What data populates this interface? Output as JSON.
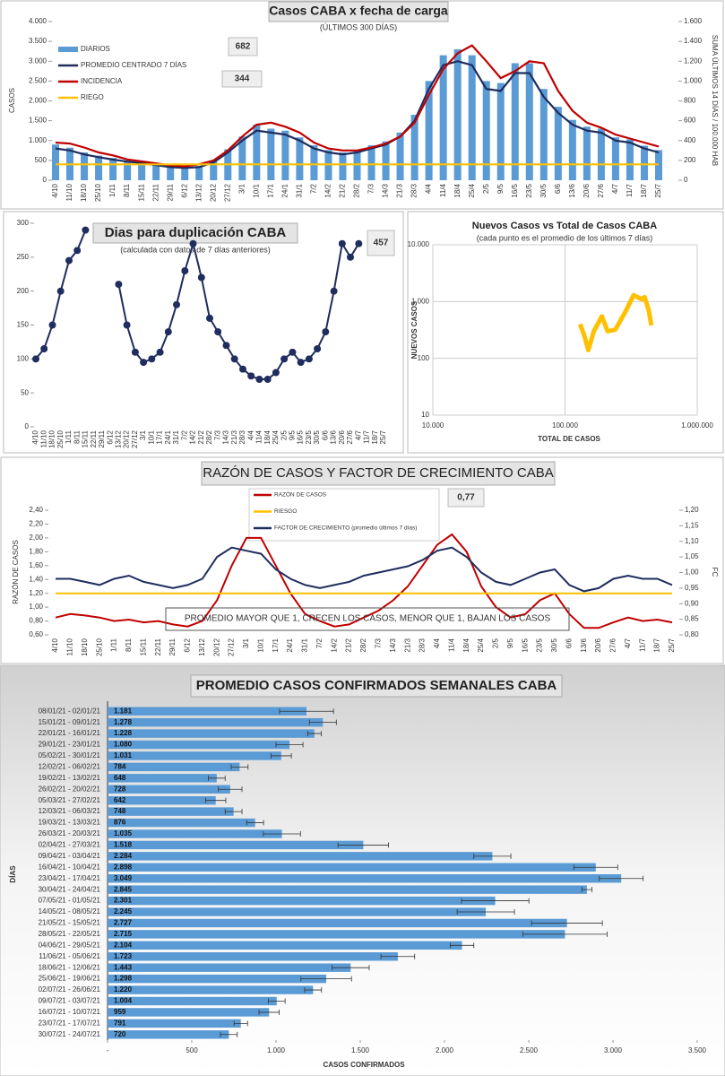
{
  "chart_data": [
    {
      "type": "bar_line",
      "title": "Casos CABA x fecha de carga",
      "subtitle": "(ÚLTIMOS 300 DÍAS)",
      "y_label": "CASOS",
      "y2_label": "SUMA ÚLTIMOS 14 DÍAS / 100.000 HAB",
      "annotations": [
        "682",
        "344"
      ],
      "legend": "upper left",
      "grid": false,
      "categories": [
        "4/10",
        "11/10",
        "18/10",
        "25/10",
        "1/11",
        "8/11",
        "15/11",
        "22/11",
        "29/11",
        "6/12",
        "13/12",
        "20/12",
        "27/12",
        "3/1",
        "10/1",
        "17/1",
        "24/1",
        "31/1",
        "7/2",
        "14/2",
        "21/2",
        "28/2",
        "7/3",
        "14/3",
        "21/3",
        "28/3",
        "4/4",
        "11/4",
        "18/4",
        "25/4",
        "2/5",
        "9/5",
        "16/5",
        "23/5",
        "30/5",
        "6/6",
        "13/6",
        "20/6",
        "27/6",
        "4/7",
        "11/7",
        "18/7",
        "25/7"
      ],
      "ylim": [
        0,
        4000
      ],
      "yticks": [
        0,
        500,
        {
          "value": 1000,
          "label": "1.000"
        },
        {
          "value": 1500,
          "label": "1.500"
        },
        {
          "value": 2000,
          "label": "2.000"
        },
        {
          "value": 2500,
          "label": "2.500"
        },
        {
          "value": 3000,
          "label": "3.000"
        },
        {
          "value": 3500,
          "label": "3.500"
        },
        {
          "value": 4000,
          "label": "4.000"
        }
      ],
      "y2lim": [
        0,
        1600
      ],
      "y2ticks": [
        0,
        200,
        400,
        600,
        800,
        {
          "value": 1000,
          "label": "1.000"
        },
        {
          "value": 1200,
          "label": "1.200"
        },
        {
          "value": 1400,
          "label": "1.400"
        },
        {
          "value": 1600,
          "label": "1.600"
        }
      ],
      "series": [
        {
          "name": "DIARIOS",
          "color": "#5b9bd5",
          "kind": "bar",
          "values": [
            900,
            820,
            700,
            620,
            560,
            500,
            460,
            410,
            360,
            330,
            360,
            500,
            780,
            1100,
            1400,
            1300,
            1250,
            1080,
            880,
            760,
            700,
            760,
            880,
            980,
            1200,
            1650,
            2500,
            3150,
            3300,
            3150,
            2500,
            2450,
            2950,
            2950,
            2300,
            1850,
            1520,
            1350,
            1300,
            1080,
            1030,
            870,
            760
          ]
        },
        {
          "name": "PROMEDIO CENTRADO 7 DÍAS",
          "color": "#1f2d5f",
          "kind": "line",
          "values": [
            800,
            750,
            650,
            580,
            520,
            470,
            430,
            380,
            330,
            310,
            330,
            450,
            700,
            1000,
            1250,
            1200,
            1150,
            1000,
            800,
            700,
            650,
            700,
            800,
            900,
            1100,
            1500,
            2300,
            2900,
            3000,
            2900,
            2300,
            2250,
            2700,
            2700,
            2100,
            1700,
            1400,
            1250,
            1200,
            1000,
            950,
            800,
            700
          ]
        },
        {
          "name": "INCIDENCIA",
          "color": "#c00000",
          "kind": "line",
          "axis": "y2",
          "values": [
            380,
            370,
            330,
            280,
            250,
            210,
            190,
            170,
            150,
            140,
            160,
            200,
            300,
            440,
            560,
            580,
            540,
            480,
            380,
            320,
            300,
            300,
            330,
            370,
            440,
            580,
            860,
            1120,
            1280,
            1360,
            1200,
            1030,
            1100,
            1200,
            1180,
            900,
            700,
            580,
            530,
            460,
            420,
            380,
            340
          ]
        },
        {
          "name": "RIEGO",
          "color": "#ffc000",
          "kind": "line",
          "values": [
            400,
            400,
            400,
            400,
            400,
            400,
            400,
            400,
            400,
            400,
            400,
            400,
            400,
            400,
            400,
            400,
            400,
            400,
            400,
            400,
            400,
            400,
            400,
            400,
            400,
            400,
            400,
            400,
            400,
            400,
            400,
            400,
            400,
            400,
            400,
            400,
            400,
            400,
            400,
            400,
            400,
            400,
            400
          ]
        }
      ]
    },
    {
      "type": "line",
      "title": "Dias para duplicación CABA",
      "subtitle": "(calculada con datos de 7 días anteriores)",
      "annotations": [
        "457"
      ],
      "color": "#1f2d5f",
      "grid": false,
      "categories": [
        "4/10",
        "11/10",
        "18/10",
        "25/10",
        "1/11",
        "8/11",
        "15/11",
        "22/11",
        "29/11",
        "6/12",
        "13/12",
        "20/12",
        "27/12",
        "3/1",
        "10/1",
        "17/1",
        "24/1",
        "31/1",
        "7/2",
        "14/2",
        "21/2",
        "28/2",
        "7/3",
        "14/3",
        "21/3",
        "28/3",
        "4/4",
        "11/4",
        "18/4",
        "25/4",
        "2/5",
        "9/5",
        "16/5",
        "23/5",
        "30/5",
        "6/6",
        "13/6",
        "20/6",
        "27/6",
        "4/7",
        "11/7",
        "18/7",
        "25/7"
      ],
      "values": [
        100,
        115,
        150,
        200,
        245,
        260,
        290,
        null,
        null,
        null,
        210,
        150,
        110,
        95,
        100,
        110,
        140,
        180,
        230,
        270,
        220,
        160,
        140,
        120,
        100,
        85,
        75,
        70,
        70,
        80,
        100,
        110,
        95,
        100,
        115,
        140,
        200,
        270,
        250,
        270,
        null,
        null,
        null
      ],
      "ylim": [
        0,
        300
      ],
      "yticks": [
        0,
        50,
        100,
        150,
        200,
        250,
        300
      ]
    },
    {
      "type": "scatter",
      "title": "Nuevos Casos vs Total de Casos CABA",
      "subtitle": "(cada punto es el promedio de los últimos 7 días)",
      "x_label": "TOTAL DE CASOS",
      "y_label": "NUEVOS CASOS",
      "color": "#ffc000",
      "xscale": "log",
      "yscale": "log",
      "grid": true,
      "x": [
        130000,
        140000,
        150000,
        165000,
        190000,
        210000,
        240000,
        290000,
        330000,
        380000,
        400000,
        430000,
        450000
      ],
      "values": [
        400,
        250,
        140,
        300,
        550,
        300,
        320,
        700,
        1300,
        1100,
        1200,
        700,
        380
      ],
      "xlim": [
        10000,
        1000000
      ],
      "xticks": [
        {
          "value": 10000,
          "label": "10.000"
        },
        {
          "value": 100000,
          "label": "100.000"
        },
        {
          "value": 1000000,
          "label": "1.000.000"
        }
      ],
      "ylim": [
        10,
        10000
      ],
      "yticks": [
        10,
        100,
        {
          "value": 1000,
          "label": "1.000"
        },
        {
          "value": 10000,
          "label": "10.000"
        }
      ]
    },
    {
      "type": "line",
      "title": "RAZÓN DE CASOS Y FACTOR DE CRECIMIENTO CABA",
      "y_label": "RAZÓN DE CASOS",
      "y2_label": "FC",
      "annotations": [
        "0,77",
        "PROMEDIO MAYOR QUE 1, CRECEN LOS CASOS, MENOR QUE 1, BAJAN LOS CASOS"
      ],
      "legend": "upper center",
      "grid": false,
      "categories": [
        "4/10",
        "11/10",
        "18/10",
        "25/10",
        "1/11",
        "8/11",
        "15/11",
        "22/11",
        "29/11",
        "6/12",
        "13/12",
        "20/12",
        "27/12",
        "3/1",
        "10/1",
        "17/1",
        "24/1",
        "31/1",
        "7/2",
        "14/2",
        "21/2",
        "28/2",
        "7/3",
        "14/3",
        "21/3",
        "28/3",
        "4/4",
        "11/4",
        "18/4",
        "25/4",
        "2/5",
        "9/5",
        "16/5",
        "23/5",
        "30/5",
        "6/6",
        "13/6",
        "20/6",
        "27/6",
        "4/7",
        "11/7",
        "18/7",
        "25/7"
      ],
      "ylim": [
        0.6,
        2.4
      ],
      "yticks": [
        {
          "value": 0.6,
          "label": "0,60"
        },
        {
          "value": 0.8,
          "label": "0,80"
        },
        {
          "value": 1,
          "label": "1,00"
        },
        {
          "value": 1.2,
          "label": "1,20"
        },
        {
          "value": 1.4,
          "label": "1,40"
        },
        {
          "value": 1.6,
          "label": "1,60"
        },
        {
          "value": 1.8,
          "label": "1,80"
        },
        {
          "value": 2,
          "label": "2,00"
        },
        {
          "value": 2.2,
          "label": "2,20"
        },
        {
          "value": 2.4,
          "label": "2,40"
        }
      ],
      "y2lim": [
        0.8,
        1.2
      ],
      "y2ticks": [
        {
          "value": 0.8,
          "label": "0,80"
        },
        {
          "value": 0.85,
          "label": "0,85"
        },
        {
          "value": 0.9,
          "label": "0,90"
        },
        {
          "value": 0.95,
          "label": "0,95"
        },
        {
          "value": 1,
          "label": "1,00"
        },
        {
          "value": 1.05,
          "label": "1,05"
        },
        {
          "value": 1.1,
          "label": "1,10"
        },
        {
          "value": 1.15,
          "label": "1,15"
        },
        {
          "value": 1.2,
          "label": "1,20"
        }
      ],
      "series": [
        {
          "name": "RAZÓN DE CASOS",
          "color": "#c00000",
          "values": [
            0.85,
            0.9,
            0.88,
            0.85,
            0.8,
            0.82,
            0.78,
            0.8,
            0.75,
            0.72,
            0.8,
            1.1,
            1.6,
            2.0,
            2.0,
            1.6,
            1.2,
            0.9,
            0.8,
            0.72,
            0.75,
            0.85,
            0.95,
            1.1,
            1.3,
            1.6,
            1.9,
            2.05,
            1.8,
            1.3,
            1.0,
            0.85,
            0.9,
            1.1,
            1.2,
            0.9,
            0.7,
            0.7,
            0.78,
            0.85,
            0.8,
            0.82,
            0.78
          ]
        },
        {
          "name": "RIESGO",
          "color": "#ffc000",
          "values": [
            1.2,
            1.2,
            1.2,
            1.2,
            1.2,
            1.2,
            1.2,
            1.2,
            1.2,
            1.2,
            1.2,
            1.2,
            1.2,
            1.2,
            1.2,
            1.2,
            1.2,
            1.2,
            1.2,
            1.2,
            1.2,
            1.2,
            1.2,
            1.2,
            1.2,
            1.2,
            1.2,
            1.2,
            1.2,
            1.2,
            1.2,
            1.2,
            1.2,
            1.2,
            1.2,
            1.2,
            1.2,
            1.2,
            1.2,
            1.2,
            1.2,
            1.2,
            1.2
          ]
        },
        {
          "name": "FACTOR DE CRECIMIENTO (promedio últimos 7 días)",
          "color": "#1f2d5f",
          "axis": "y2",
          "values": [
            0.98,
            0.98,
            0.97,
            0.96,
            0.98,
            0.99,
            0.97,
            0.96,
            0.95,
            0.96,
            0.98,
            1.05,
            1.08,
            1.07,
            1.06,
            1.01,
            0.98,
            0.96,
            0.95,
            0.96,
            0.97,
            0.99,
            1.0,
            1.01,
            1.02,
            1.04,
            1.07,
            1.08,
            1.05,
            1.0,
            0.97,
            0.96,
            0.98,
            1.0,
            1.01,
            0.96,
            0.94,
            0.95,
            0.98,
            0.99,
            0.98,
            0.98,
            0.96
          ]
        }
      ]
    },
    {
      "type": "hbar",
      "title": "PROMEDIO CASOS CONFIRMADOS SEMANALES CABA",
      "x_label": "CASOS CONFIRMADOS",
      "y_label": "DÍAS",
      "color": "#5b9bd5",
      "categories": [
        "08/01/21 - 02/01/21",
        "15/01/21 - 09/01/21",
        "22/01/21 - 16/01/21",
        "29/01/21 - 23/01/21",
        "05/02/21 - 30/01/21",
        "12/02/21 - 06/02/21",
        "19/02/21 - 13/02/21",
        "26/02/21 - 20/02/21",
        "05/03/21 - 27/02/21",
        "12/03/21 - 06/03/21",
        "19/03/21 - 13/03/21",
        "26/03/21 - 20/03/21",
        "02/04/21 - 27/03/21",
        "09/04/21 - 03/04/21",
        "16/04/21 - 10/04/21",
        "23/04/21 - 17/04/21",
        "30/04/21 - 24/04/21",
        "07/05/21 - 01/05/21",
        "14/05/21 - 08/05/21",
        "21/05/21 - 15/05/21",
        "28/05/21 - 22/05/21",
        "04/06/21 - 29/05/21",
        "11/06/21 - 05/06/21",
        "18/06/21 - 12/06/21",
        "25/06/21 - 19/06/21",
        "02/07/21 - 26/06/21",
        "09/07/21 - 03/07/21",
        "16/07/21 - 10/07/21",
        "23/07/21 - 17/07/21",
        "30/07/21 - 24/07/21"
      ],
      "values": [
        1181,
        1278,
        1228,
        1080,
        1031,
        784,
        648,
        728,
        642,
        748,
        876,
        1035,
        1518,
        2284,
        2898,
        3049,
        2845,
        2301,
        2245,
        2727,
        2715,
        2104,
        1723,
        1443,
        1298,
        1220,
        1004,
        959,
        791,
        720
      ],
      "value_labels": [
        "1.181",
        "1.278",
        "1.228",
        "1.080",
        "1.031",
        "784",
        "648",
        "728",
        "642",
        "748",
        "876",
        "1.035",
        "1.518",
        "2.284",
        "2.898",
        "3.049",
        "2.845",
        "2.301",
        "2.245",
        "2.727",
        "2.715",
        "2.104",
        "1.723",
        "1.443",
        "1.298",
        "1.220",
        "1.004",
        "959",
        "791",
        "720"
      ],
      "errors": [
        160,
        80,
        40,
        80,
        60,
        50,
        50,
        70,
        60,
        50,
        50,
        110,
        150,
        110,
        130,
        130,
        30,
        200,
        170,
        210,
        250,
        70,
        100,
        110,
        150,
        50,
        50,
        60,
        40,
        50
      ],
      "xlim": [
        0,
        3500
      ],
      "xticks": [
        {
          "value": 0,
          "label": "-"
        },
        500,
        {
          "value": 1000,
          "label": "1.000"
        },
        {
          "value": 1500,
          "label": "1.500"
        },
        {
          "value": 2000,
          "label": "2.000"
        },
        {
          "value": 2500,
          "label": "2.500"
        },
        {
          "value": 3000,
          "label": "3.000"
        },
        {
          "value": 3500,
          "label": "3.500"
        }
      ]
    }
  ]
}
